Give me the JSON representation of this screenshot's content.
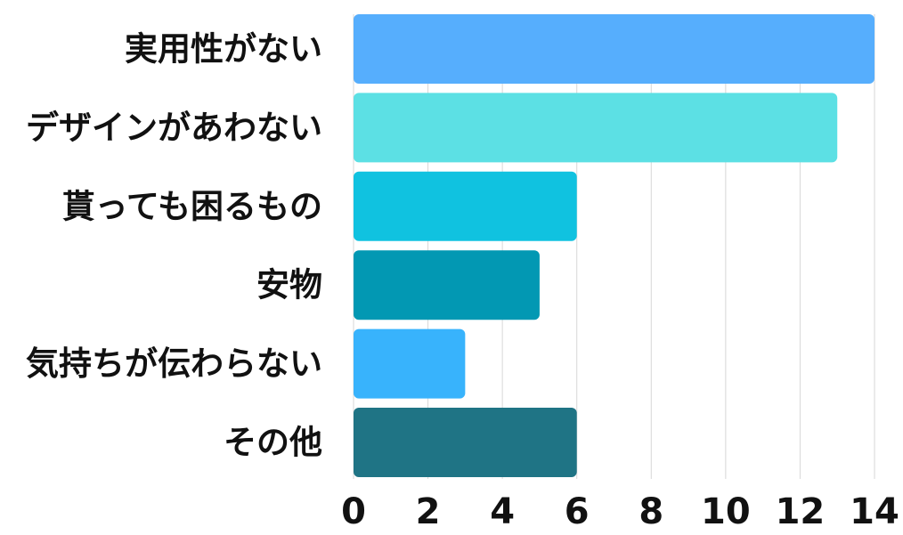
{
  "chart_data": {
    "type": "bar",
    "orientation": "horizontal",
    "categories": [
      "実用性がない",
      "デザインがあわない",
      "貰っても困るもの",
      "安物",
      "気持ちが伝わらない",
      "その他"
    ],
    "values": [
      14,
      13,
      6,
      5,
      3,
      6
    ],
    "colors": [
      "#56aefd",
      "#5ce0e4",
      "#10c2e0",
      "#0298b3",
      "#38b3fc",
      "#1f7485"
    ],
    "title": "",
    "xlabel": "",
    "ylabel": "",
    "xlim": [
      0,
      14
    ],
    "xticks": [
      0,
      2,
      4,
      6,
      8,
      10,
      12,
      14
    ],
    "grid": true,
    "legend": "none"
  }
}
